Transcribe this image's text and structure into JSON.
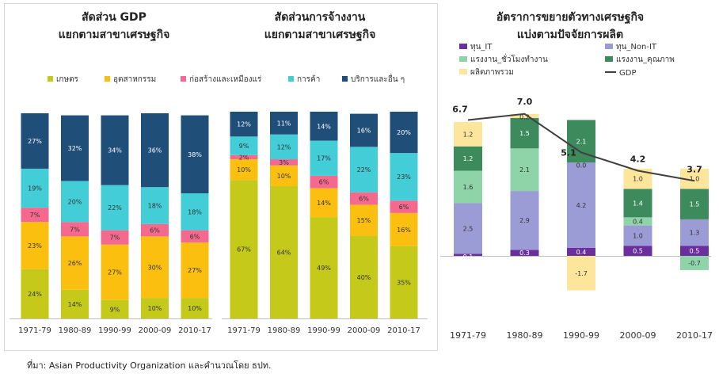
{
  "charts": {
    "gdp_share": {
      "title_line1": "สัดส่วน GDP",
      "title_line2": "แยกตามสาขาเศรษฐกิจ"
    },
    "employment_share": {
      "title_line1": "สัดส่วนการจ้างงาน",
      "title_line2": "แยกตามสาขาเศรษฐกิจ"
    },
    "growth_decomposition": {
      "title_line1": "อัตราการขยายตัวทางเศรษฐกิจ",
      "title_line2": "แบ่งตามปัจจัยการผลิต"
    }
  },
  "legend_sectors": [
    "เกษตร",
    "อุตสาหกรรม",
    "ก่อสร้างและเหมืองแร่",
    "การค้า",
    "บริการและอื่น ๆ"
  ],
  "source_note": "ที่มา: Asian Productivity Organization และคำนวณโดย ธปท.",
  "colors": {
    "agriculture": "#c5c91a",
    "industry": "#fbbf0f",
    "construction": "#f5698f",
    "trade": "#43cdd6",
    "services": "#1f4e79",
    "capital_it": "#6a2e9e",
    "capital_nonit": "#9b9bd6",
    "labor_hours": "#8fd4a8",
    "labor_quality": "#3d8a5c",
    "tfp": "#fde59b",
    "gdp_line": "#404040"
  },
  "chart_data": [
    {
      "type": "bar",
      "stacked": true,
      "title": "สัดส่วน GDP แยกตามสาขาเศรษฐกิจ",
      "categories": [
        "1971-79",
        "1980-89",
        "1990-99",
        "2000-09",
        "2010-17"
      ],
      "series": [
        {
          "name": "เกษตร",
          "values": [
            24,
            14,
            9,
            10,
            10
          ]
        },
        {
          "name": "อุตสาหกรรม",
          "values": [
            23,
            26,
            27,
            30,
            27
          ]
        },
        {
          "name": "ก่อสร้างและเหมืองแร่",
          "values": [
            7,
            7,
            7,
            6,
            6
          ]
        },
        {
          "name": "การค้า",
          "values": [
            19,
            20,
            22,
            18,
            18
          ]
        },
        {
          "name": "บริการและอื่น ๆ",
          "values": [
            27,
            32,
            34,
            36,
            38
          ]
        }
      ],
      "labels": [
        [
          "24%",
          "14%",
          "9%",
          "10%",
          "10%"
        ],
        [
          "23%",
          "26%",
          "27%",
          "30%",
          "27%"
        ],
        [
          "7%",
          "7%",
          "7%",
          "6%",
          "6%"
        ],
        [
          "19%",
          "20%",
          "22%",
          "18%",
          "18%"
        ],
        [
          "27%",
          "32%",
          "34%",
          "36%",
          "38%"
        ]
      ],
      "ylim": [
        0,
        100
      ]
    },
    {
      "type": "bar",
      "stacked": true,
      "title": "สัดส่วนการจ้างงาน แยกตามสาขาเศรษฐกิจ",
      "categories": [
        "1971-79",
        "1980-89",
        "1990-99",
        "2000-09",
        "2010-17"
      ],
      "series": [
        {
          "name": "เกษตร",
          "values": [
            67,
            64,
            49,
            40,
            35
          ]
        },
        {
          "name": "อุตสาหกรรม",
          "values": [
            10,
            10,
            14,
            15,
            16
          ]
        },
        {
          "name": "ก่อสร้างและเหมืองแร่",
          "values": [
            2,
            3,
            6,
            6,
            6
          ]
        },
        {
          "name": "การค้า",
          "values": [
            9,
            12,
            17,
            22,
            23
          ]
        },
        {
          "name": "บริการและอื่น ๆ",
          "values": [
            12,
            11,
            14,
            16,
            20
          ]
        }
      ],
      "labels": [
        [
          "67%",
          "64%",
          "49%",
          "40%",
          "35%"
        ],
        [
          "10%",
          "10%",
          "14%",
          "15%",
          "16%"
        ],
        [
          "2%",
          "3%",
          "6%",
          "6%",
          "6%"
        ],
        [
          "9%",
          "12%",
          "17%",
          "22%",
          "23%"
        ],
        [
          "12%",
          "11%",
          "14%",
          "16%",
          "20%"
        ]
      ],
      "ylim": [
        0,
        100
      ]
    },
    {
      "type": "bar",
      "stacked": true,
      "title": "อัตราการขยายตัวทางเศรษฐกิจ แบ่งตามปัจจัยการผลิต",
      "categories": [
        "1971-79",
        "1980-89",
        "1990-99",
        "2000-09",
        "2010-17"
      ],
      "legend": [
        "ทุน_IT",
        "ทุน_Non-IT",
        "แรงงาน_ชั่วโมงทำงาน",
        "แรงงาน_คุณภาพ",
        "ผลิตภาพรวม",
        "GDP"
      ],
      "series": [
        {
          "name": "ทุน_IT",
          "values": [
            0.1,
            0.3,
            0.4,
            0.5,
            0.5
          ],
          "labels": [
            "0.1",
            "0.3",
            "0.4",
            "0.5",
            "0.5"
          ]
        },
        {
          "name": "ทุน_Non-IT",
          "values": [
            2.5,
            2.9,
            4.2,
            1.0,
            1.3
          ],
          "labels": [
            "2.5",
            "2.9",
            "4.2",
            "1.0",
            "1.3"
          ]
        },
        {
          "name": "แรงงาน_ชั่วโมงทำงาน",
          "values": [
            1.6,
            2.1,
            0.0,
            0.4,
            -0.7
          ],
          "labels": [
            "1.6",
            "2.1",
            "0.0",
            "0.4",
            "-0.7"
          ]
        },
        {
          "name": "แรงงาน_คุณภาพ",
          "values": [
            1.2,
            1.5,
            2.1,
            1.4,
            1.5
          ],
          "labels": [
            "1.2",
            "1.5",
            "2.1",
            "1.4",
            "1.5"
          ]
        },
        {
          "name": "ผลิตภาพรวม",
          "values": [
            1.2,
            0.2,
            -1.7,
            1.0,
            1.0
          ],
          "labels": [
            "1.2",
            "0.2",
            "-1.7",
            "1.0",
            "1.0"
          ]
        }
      ],
      "line": {
        "name": "GDP",
        "values": [
          6.7,
          7.0,
          5.1,
          4.2,
          3.7
        ],
        "labels": [
          "6.7",
          "7.0",
          "5.1",
          "4.2",
          "3.7"
        ]
      },
      "ylim": [
        -2.2,
        7.6
      ]
    }
  ]
}
